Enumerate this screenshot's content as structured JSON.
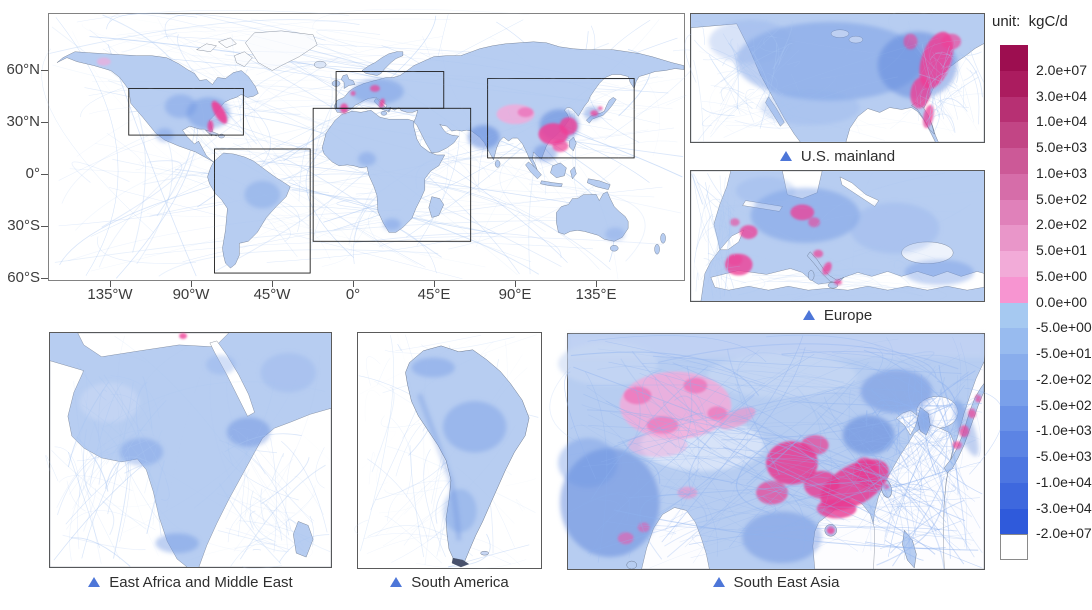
{
  "figure": {
    "unit_label": "unit:  kgC/d"
  },
  "legend": {
    "ticks": [
      "2.0e+07",
      "3.0e+04",
      "1.0e+04",
      "5.0e+03",
      "1.0e+03",
      "5.0e+02",
      "2.0e+02",
      "5.0e+01",
      "5.0e+00",
      "0.0e+00",
      "-5.0e+00",
      "-5.0e+01",
      "-2.0e+02",
      "-5.0e+02",
      "-1.0e+03",
      "-5.0e+03",
      "-1.0e+04",
      "-3.0e+04",
      "-2.0e+07"
    ],
    "colors": [
      "#9d0e50",
      "#ab1c5f",
      "#b73073",
      "#c24585",
      "#cc5997",
      "#d66da9",
      "#e081ba",
      "#e996c9",
      "#f2abd8",
      "#f795d1",
      "#a6c9f1",
      "#98bbef",
      "#89adec",
      "#7aa0ea",
      "#6b92e7",
      "#5c84e4",
      "#4d76e1",
      "#3e68de",
      "#2f5adb",
      "#ffffff"
    ]
  },
  "main_map": {
    "lat_ticks": [
      "60°N",
      "30°N",
      "0°",
      "30°S",
      "60°S"
    ],
    "lon_ticks": [
      "135°W",
      "90°W",
      "45°W",
      "0°",
      "45°E",
      "90°E",
      "135°E"
    ]
  },
  "panels": {
    "us": {
      "label": "U.S. mainland"
    },
    "europe": {
      "label": "Europe"
    },
    "east_africa": {
      "label": "East Africa and Middle East"
    },
    "south_america": {
      "label": "South America"
    },
    "south_east_asia": {
      "label": "South East Asia"
    }
  },
  "colors": {
    "marker_triangle": "#4d76d8",
    "hotspot_pink": "#ee3f96",
    "hotspot_light_pink": "#f6a9d9",
    "land_blue": "#b7cdf1",
    "route_line_blue": "#a9c6f2"
  }
}
